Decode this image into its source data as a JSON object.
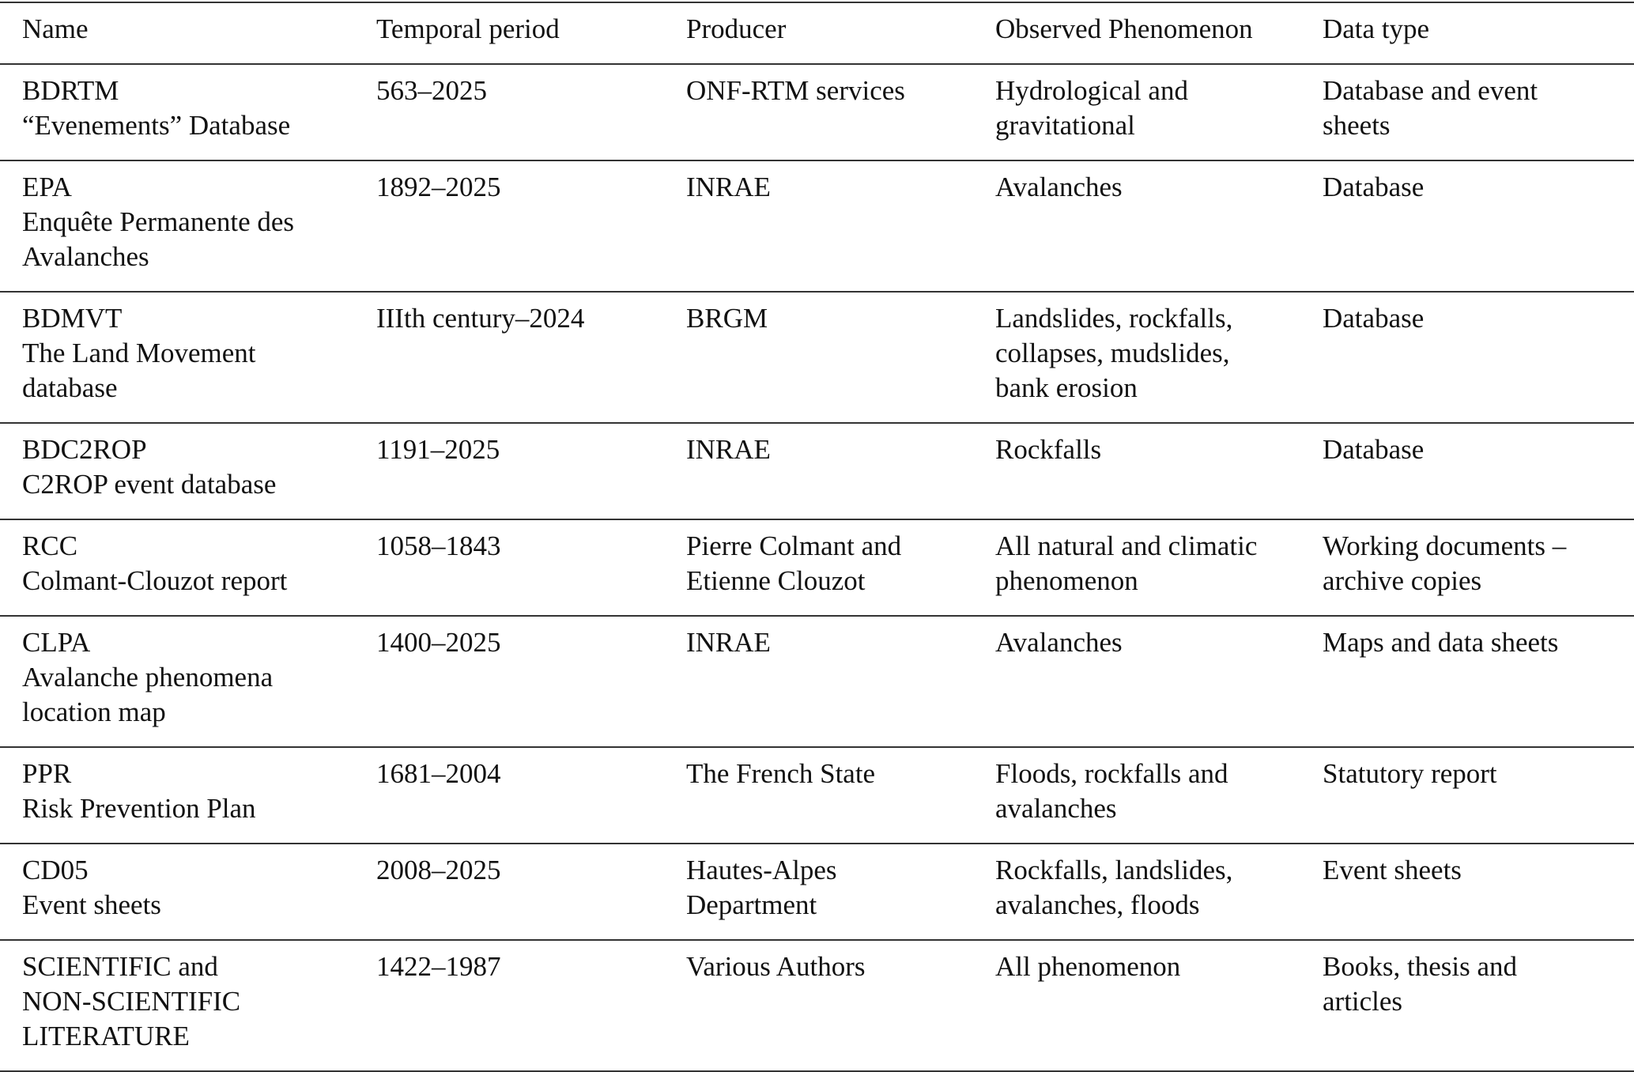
{
  "table": {
    "header": [
      "Name",
      "Temporal period",
      "Producer",
      "Observed Phenomenon",
      "Data type"
    ],
    "rows": [
      [
        [
          "BDRTM",
          "“Evenements” Database"
        ],
        [
          "563–2025"
        ],
        [
          "ONF-RTM services"
        ],
        [
          "Hydrological and",
          "gravitational"
        ],
        [
          "Database and event",
          "sheets"
        ]
      ],
      [
        [
          "EPA",
          "Enquête Permanente des",
          "Avalanches"
        ],
        [
          "1892–2025"
        ],
        [
          "INRAE"
        ],
        [
          "Avalanches"
        ],
        [
          "Database"
        ]
      ],
      [
        [
          "BDMVT",
          "The Land Movement",
          "database"
        ],
        [
          "IIIth century–2024"
        ],
        [
          "BRGM"
        ],
        [
          "Landslides, rockfalls,",
          "collapses, mudslides,",
          "bank erosion"
        ],
        [
          "Database"
        ]
      ],
      [
        [
          "BDC2ROP",
          "C2ROP event database"
        ],
        [
          "1191–2025"
        ],
        [
          "INRAE"
        ],
        [
          "Rockfalls"
        ],
        [
          "Database"
        ]
      ],
      [
        [
          "RCC",
          "Colmant-Clouzot report"
        ],
        [
          "1058–1843"
        ],
        [
          "Pierre Colmant and",
          "Etienne Clouzot"
        ],
        [
          "All natural and climatic",
          "phenomenon"
        ],
        [
          "Working documents –",
          "archive copies"
        ]
      ],
      [
        [
          "CLPA",
          "Avalanche phenomena",
          "location map"
        ],
        [
          "1400–2025"
        ],
        [
          "INRAE"
        ],
        [
          "Avalanches"
        ],
        [
          "Maps and data sheets"
        ]
      ],
      [
        [
          "PPR",
          "Risk Prevention Plan"
        ],
        [
          "1681–2004"
        ],
        [
          "The French State"
        ],
        [
          "Floods, rockfalls and",
          "avalanches"
        ],
        [
          "Statutory report"
        ]
      ],
      [
        [
          "CD05",
          "Event sheets"
        ],
        [
          "2008–2025"
        ],
        [
          "Hautes-Alpes",
          "Department"
        ],
        [
          "Rockfalls, landslides,",
          "avalanches, floods"
        ],
        [
          "Event sheets"
        ]
      ],
      [
        [
          "SCIENTIFIC and",
          "NON-SCIENTIFIC",
          "LITERATURE"
        ],
        [
          "1422–1987"
        ],
        [
          "Various Authors"
        ],
        [
          "All phenomenon"
        ],
        [
          "Books, thesis and",
          "articles"
        ]
      ]
    ]
  }
}
